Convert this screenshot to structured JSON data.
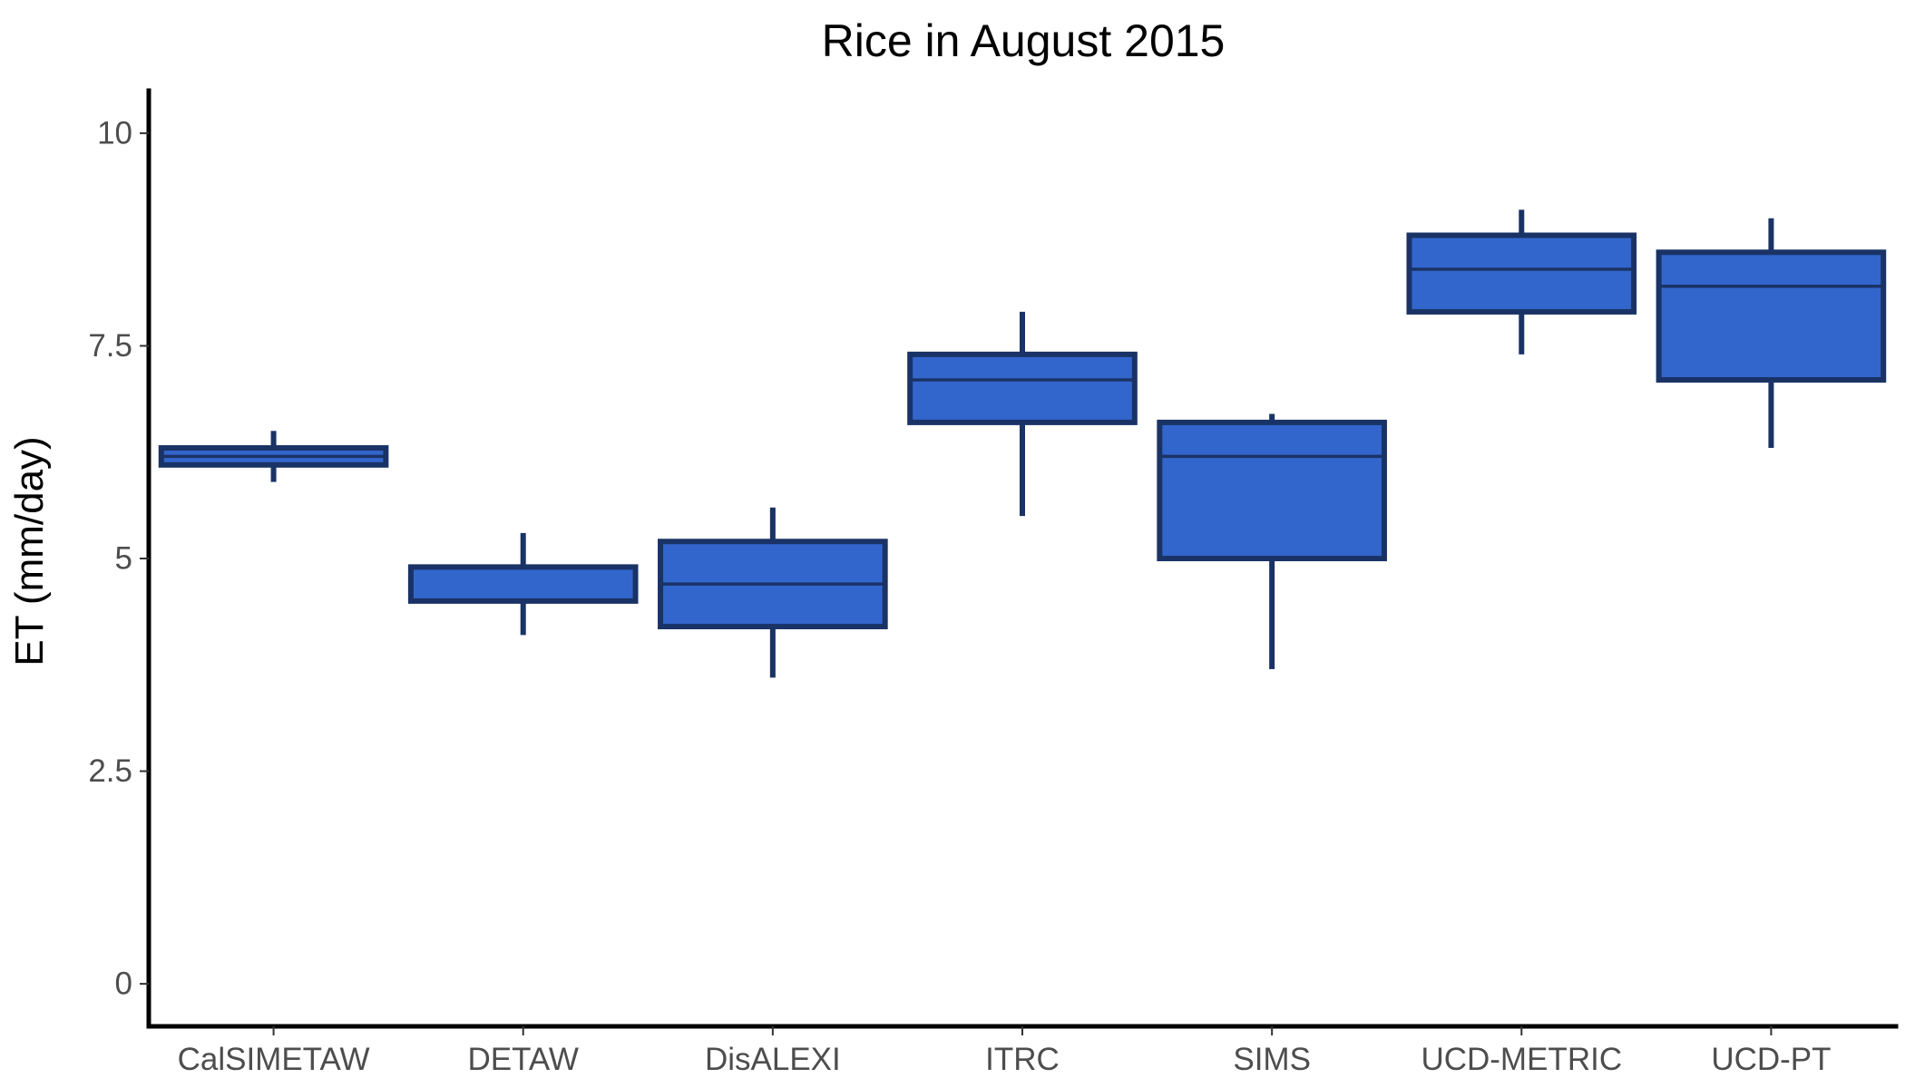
{
  "chart_data": {
    "type": "box",
    "title": "Rice in August 2015",
    "xlabel": "",
    "ylabel": "ET (mm/day)",
    "ylim": [
      -0.5,
      10.5
    ],
    "yticks": [
      0,
      2.5,
      5,
      7.5,
      10
    ],
    "ytick_labels": [
      "0",
      "2.5",
      "5",
      "7.5",
      "10"
    ],
    "grid": false,
    "legend": "none",
    "colors": {
      "box_fill": "#3366cc",
      "box_edge": "#1a3366",
      "axis": "#000000",
      "tick_text": "#4d4d4d"
    },
    "categories": [
      "CalSIMETAW",
      "DETAW",
      "DisALEXI",
      "ITRC",
      "SIMS",
      "UCD-METRIC",
      "UCD-PT"
    ],
    "boxes": [
      {
        "category": "CalSIMETAW",
        "whisker_low": 5.9,
        "q1": 6.1,
        "median": 6.2,
        "q3": 6.3,
        "whisker_high": 6.5
      },
      {
        "category": "DETAW",
        "whisker_low": 4.1,
        "q1": 4.5,
        "median": 4.5,
        "q3": 4.9,
        "whisker_high": 5.3
      },
      {
        "category": "DisALEXI",
        "whisker_low": 3.6,
        "q1": 4.2,
        "median": 4.7,
        "q3": 5.2,
        "whisker_high": 5.6
      },
      {
        "category": "ITRC",
        "whisker_low": 5.5,
        "q1": 6.6,
        "median": 7.1,
        "q3": 7.4,
        "whisker_high": 7.9
      },
      {
        "category": "SIMS",
        "whisker_low": 3.7,
        "q1": 5.0,
        "median": 6.2,
        "q3": 6.6,
        "whisker_high": 6.7
      },
      {
        "category": "UCD-METRIC",
        "whisker_low": 7.4,
        "q1": 7.9,
        "median": 8.4,
        "q3": 8.8,
        "whisker_high": 9.1
      },
      {
        "category": "UCD-PT",
        "whisker_low": 6.3,
        "q1": 7.1,
        "median": 8.2,
        "q3": 8.6,
        "whisker_high": 9.0
      }
    ]
  }
}
